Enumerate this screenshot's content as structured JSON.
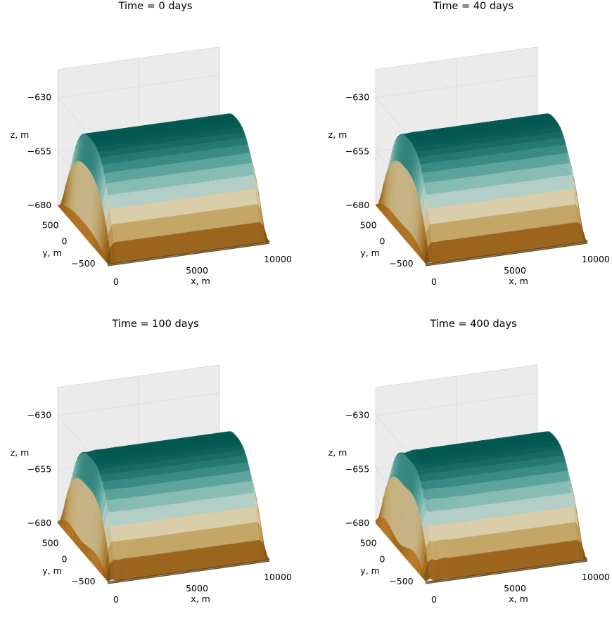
{
  "figure": {
    "description_type": "3D surface plots of salt dome / interface evolution"
  },
  "chart_data": [
    {
      "type": "surface3d",
      "title": "Time = 0 days",
      "xlabel": "x, m",
      "ylabel": "y, m",
      "zlabel": "z, m",
      "x_ticks": [
        "0",
        "5000",
        "10000"
      ],
      "y_ticks": [
        "500",
        "0",
        "−500"
      ],
      "z_ticks": [
        "−630",
        "−655",
        "−680"
      ],
      "xlim": [
        0,
        10000
      ],
      "ylim": [
        -600,
        600
      ],
      "zlim": [
        -680,
        -620
      ],
      "colormap": [
        "#8c510a",
        "#bf812d",
        "#dfc27d",
        "#f6e8c3",
        "#c7eae5",
        "#80cdc1",
        "#35978f",
        "#01665e"
      ],
      "crest_z": -636,
      "front_tilt": 0.0,
      "roughness": 0.0
    },
    {
      "type": "surface3d",
      "title": "Time = 40 days",
      "xlabel": "x, m",
      "ylabel": "y, m",
      "zlabel": "z, m",
      "x_ticks": [
        "0",
        "5000",
        "10000"
      ],
      "y_ticks": [
        "500",
        "0",
        "−500"
      ],
      "z_ticks": [
        "−630",
        "−655",
        "−680"
      ],
      "xlim": [
        0,
        10000
      ],
      "ylim": [
        -600,
        600
      ],
      "zlim": [
        -680,
        -620
      ],
      "colormap": [
        "#8c510a",
        "#bf812d",
        "#dfc27d",
        "#f6e8c3",
        "#c7eae5",
        "#80cdc1",
        "#35978f",
        "#01665e"
      ],
      "crest_z": -636,
      "front_tilt": 0.15,
      "roughness": 0.3
    },
    {
      "type": "surface3d",
      "title": "Time = 100 days",
      "xlabel": "x, m",
      "ylabel": "y, m",
      "zlabel": "z, m",
      "x_ticks": [
        "0",
        "5000",
        "10000"
      ],
      "y_ticks": [
        "500",
        "0",
        "−500"
      ],
      "z_ticks": [
        "−630",
        "−655",
        "−680"
      ],
      "xlim": [
        0,
        10000
      ],
      "ylim": [
        -600,
        600
      ],
      "zlim": [
        -680,
        -620
      ],
      "colormap": [
        "#8c510a",
        "#bf812d",
        "#dfc27d",
        "#f6e8c3",
        "#c7eae5",
        "#80cdc1",
        "#35978f",
        "#01665e"
      ],
      "crest_z": -636,
      "front_tilt": 0.35,
      "roughness": 0.6
    },
    {
      "type": "surface3d",
      "title": "Time = 400 days",
      "xlabel": "x, m",
      "ylabel": "y, m",
      "zlabel": "z, m",
      "x_ticks": [
        "0",
        "5000",
        "10000"
      ],
      "y_ticks": [
        "500",
        "0",
        "−500"
      ],
      "z_ticks": [
        "−630",
        "−655",
        "−680"
      ],
      "xlim": [
        0,
        10000
      ],
      "ylim": [
        -600,
        600
      ],
      "zlim": [
        -680,
        -620
      ],
      "colormap": [
        "#8c510a",
        "#bf812d",
        "#dfc27d",
        "#f6e8c3",
        "#c7eae5",
        "#80cdc1",
        "#35978f",
        "#01665e"
      ],
      "crest_z": -636,
      "front_tilt": 0.6,
      "roughness": 1.0
    }
  ]
}
